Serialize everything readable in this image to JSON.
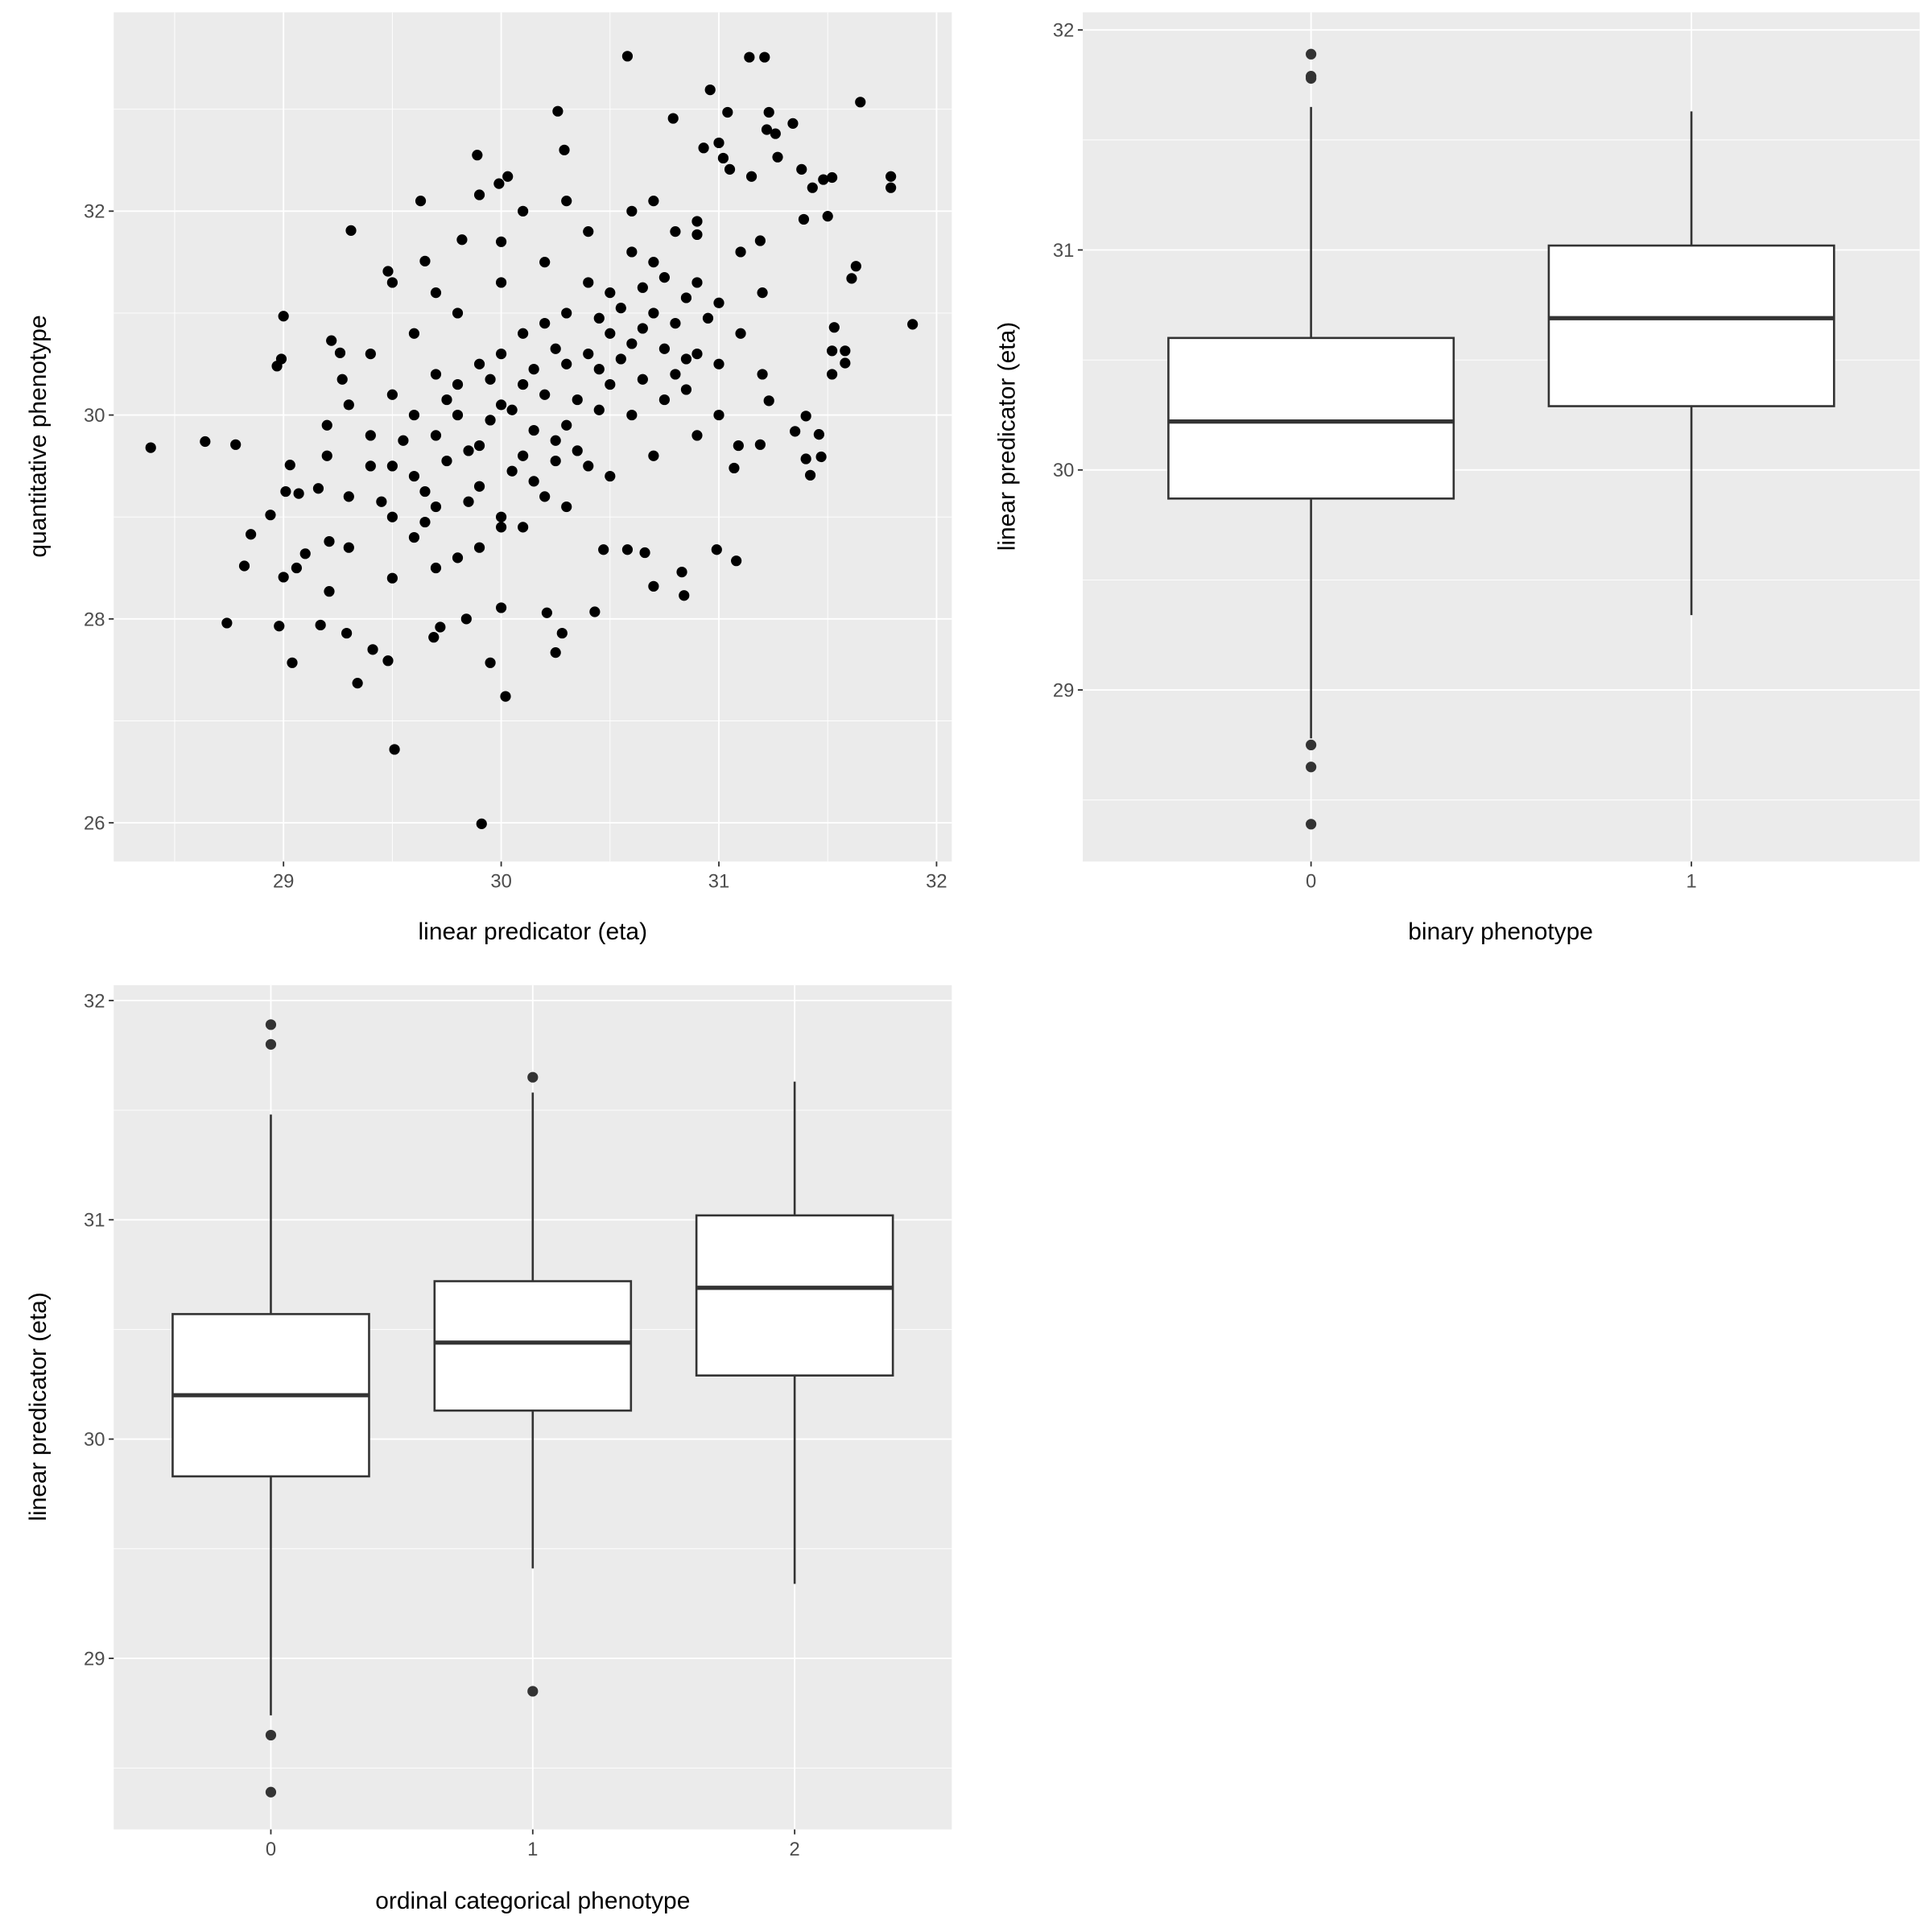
{
  "chart_data": [
    {
      "type": "scatter",
      "xlabel": "linear predicator (eta)",
      "ylabel": "quantitative phenotype",
      "xlim": [
        28.22,
        32.07
      ],
      "ylim": [
        25.62,
        33.95
      ],
      "xticks": [
        29,
        30,
        31,
        32
      ],
      "yticks": [
        26,
        28,
        30,
        32
      ],
      "grid": true,
      "point_color": "#000000",
      "points": [
        [
          28.39,
          29.68
        ],
        [
          28.64,
          29.74
        ],
        [
          28.78,
          29.71
        ],
        [
          28.74,
          27.96
        ],
        [
          28.82,
          28.52
        ],
        [
          28.85,
          28.83
        ],
        [
          28.94,
          29.02
        ],
        [
          28.97,
          30.48
        ],
        [
          28.99,
          30.55
        ],
        [
          29.0,
          30.97
        ],
        [
          28.98,
          27.93
        ],
        [
          29.04,
          27.57
        ],
        [
          29.0,
          28.41
        ],
        [
          29.06,
          28.5
        ],
        [
          29.1,
          28.64
        ],
        [
          29.03,
          29.51
        ],
        [
          29.07,
          29.23
        ],
        [
          29.01,
          29.25
        ],
        [
          29.16,
          29.28
        ],
        [
          29.17,
          27.94
        ],
        [
          29.21,
          28.76
        ],
        [
          29.21,
          28.27
        ],
        [
          29.22,
          30.73
        ],
        [
          29.26,
          30.61
        ],
        [
          29.27,
          30.35
        ],
        [
          29.29,
          27.86
        ],
        [
          29.31,
          31.81
        ],
        [
          29.34,
          27.37
        ],
        [
          29.41,
          27.7
        ],
        [
          29.48,
          27.59
        ],
        [
          29.51,
          26.72
        ],
        [
          29.91,
          25.99
        ],
        [
          30.02,
          27.24
        ],
        [
          29.95,
          27.57
        ],
        [
          29.69,
          27.82
        ],
        [
          30.26,
          32.98
        ],
        [
          30.29,
          32.6
        ],
        [
          30.58,
          33.52
        ],
        [
          31.14,
          33.51
        ],
        [
          31.21,
          33.51
        ],
        [
          30.96,
          33.19
        ],
        [
          31.65,
          33.07
        ],
        [
          30.79,
          32.91
        ],
        [
          31.04,
          32.97
        ],
        [
          31.23,
          32.97
        ],
        [
          31.34,
          32.86
        ],
        [
          31.22,
          32.8
        ],
        [
          31.26,
          32.76
        ],
        [
          31.27,
          32.53
        ],
        [
          30.93,
          32.62
        ],
        [
          31.0,
          32.67
        ],
        [
          31.02,
          32.52
        ],
        [
          31.05,
          32.41
        ],
        [
          31.38,
          32.41
        ],
        [
          31.79,
          32.34
        ],
        [
          31.79,
          32.23
        ],
        [
          31.52,
          32.33
        ],
        [
          31.48,
          32.31
        ],
        [
          31.43,
          32.23
        ],
        [
          31.15,
          32.34
        ],
        [
          31.89,
          30.89
        ],
        [
          31.63,
          31.46
        ],
        [
          31.61,
          31.34
        ],
        [
          31.5,
          31.95
        ],
        [
          31.39,
          31.92
        ],
        [
          31.53,
          30.86
        ],
        [
          31.52,
          30.63
        ],
        [
          31.58,
          30.63
        ],
        [
          31.58,
          30.51
        ],
        [
          31.52,
          30.4
        ],
        [
          31.4,
          29.99
        ],
        [
          31.35,
          29.84
        ],
        [
          31.46,
          29.81
        ],
        [
          31.47,
          29.59
        ],
        [
          31.4,
          29.57
        ],
        [
          31.42,
          29.41
        ],
        [
          31.23,
          30.14
        ],
        [
          31.19,
          29.71
        ],
        [
          31.09,
          29.7
        ],
        [
          31.07,
          29.48
        ],
        [
          31.08,
          28.57
        ],
        [
          30.99,
          28.68
        ],
        [
          30.84,
          28.23
        ],
        [
          30.83,
          28.46
        ],
        [
          30.7,
          28.32
        ],
        [
          30.66,
          28.65
        ],
        [
          30.58,
          28.68
        ],
        [
          30.47,
          28.68
        ],
        [
          30.43,
          28.07
        ],
        [
          30.28,
          27.86
        ],
        [
          30.25,
          27.67
        ],
        [
          30.21,
          28.06
        ],
        [
          30.0,
          28.11
        ],
        [
          29.84,
          28.0
        ],
        [
          29.72,
          27.92
        ],
        [
          29.82,
          31.72
        ],
        [
          29.89,
          32.55
        ],
        [
          29.9,
          32.16
        ],
        [
          29.99,
          32.27
        ],
        [
          30.03,
          32.34
        ],
        [
          29.63,
          32.1
        ],
        [
          29.65,
          31.51
        ],
        [
          29.48,
          31.41
        ],
        [
          30.9,
          31.77
        ],
        [
          31.19,
          31.71
        ],
        [
          29.5,
          29.0
        ],
        [
          29.6,
          29.4
        ],
        [
          29.7,
          29.8
        ],
        [
          29.8,
          30.0
        ],
        [
          29.9,
          29.7
        ],
        [
          30.0,
          30.1
        ],
        [
          30.1,
          30.3
        ],
        [
          30.2,
          30.2
        ],
        [
          30.3,
          30.5
        ],
        [
          30.4,
          30.6
        ],
        [
          30.5,
          30.8
        ],
        [
          30.6,
          30.7
        ],
        [
          30.7,
          31.0
        ],
        [
          30.8,
          30.9
        ],
        [
          30.9,
          30.6
        ],
        [
          31.0,
          31.1
        ],
        [
          30.5,
          30.3
        ],
        [
          30.3,
          29.9
        ],
        [
          30.1,
          29.6
        ],
        [
          29.9,
          29.3
        ],
        [
          29.7,
          29.1
        ],
        [
          29.6,
          28.8
        ],
        [
          29.8,
          28.6
        ],
        [
          30.0,
          28.9
        ],
        [
          30.2,
          29.2
        ],
        [
          30.4,
          29.5
        ],
        [
          30.6,
          30.0
        ],
        [
          30.8,
          30.4
        ],
        [
          31.0,
          30.5
        ],
        [
          30.9,
          31.3
        ],
        [
          30.7,
          31.5
        ],
        [
          30.5,
          31.2
        ],
        [
          30.3,
          31.0
        ],
        [
          30.1,
          30.8
        ],
        [
          29.9,
          30.5
        ],
        [
          29.7,
          30.4
        ],
        [
          29.5,
          30.2
        ],
        [
          29.4,
          29.8
        ],
        [
          29.5,
          29.5
        ],
        [
          29.6,
          30.0
        ],
        [
          29.8,
          30.3
        ],
        [
          30.0,
          30.6
        ],
        [
          30.2,
          30.9
        ],
        [
          30.4,
          31.3
        ],
        [
          30.6,
          31.6
        ],
        [
          30.8,
          31.8
        ],
        [
          30.6,
          32.0
        ],
        [
          30.4,
          31.8
        ],
        [
          30.2,
          31.5
        ],
        [
          30.0,
          31.3
        ],
        [
          29.8,
          31.0
        ],
        [
          29.6,
          30.8
        ],
        [
          29.4,
          30.6
        ],
        [
          29.5,
          31.3
        ],
        [
          29.7,
          31.2
        ],
        [
          30.0,
          31.7
        ],
        [
          30.1,
          32.0
        ],
        [
          30.3,
          32.1
        ],
        [
          30.7,
          32.1
        ],
        [
          30.9,
          31.9
        ],
        [
          31.1,
          31.6
        ],
        [
          31.2,
          31.2
        ],
        [
          31.1,
          30.8
        ],
        [
          31.2,
          30.4
        ],
        [
          31.0,
          30.0
        ],
        [
          30.9,
          29.8
        ],
        [
          30.7,
          29.6
        ],
        [
          30.5,
          29.4
        ],
        [
          30.3,
          29.1
        ],
        [
          30.1,
          28.9
        ],
        [
          29.9,
          28.7
        ],
        [
          29.7,
          28.5
        ],
        [
          29.5,
          28.4
        ],
        [
          29.3,
          28.7
        ],
        [
          29.3,
          29.2
        ],
        [
          29.4,
          29.5
        ],
        [
          29.2,
          29.6
        ],
        [
          29.3,
          30.1
        ],
        [
          29.2,
          29.9
        ],
        [
          30.0,
          29.0
        ],
        [
          30.15,
          29.35
        ],
        [
          30.25,
          29.75
        ],
        [
          30.35,
          30.15
        ],
        [
          30.45,
          30.45
        ],
        [
          30.55,
          30.55
        ],
        [
          30.65,
          30.85
        ],
        [
          30.75,
          30.65
        ],
        [
          30.85,
          30.55
        ],
        [
          30.95,
          30.95
        ],
        [
          30.05,
          30.05
        ],
        [
          29.95,
          29.95
        ],
        [
          29.85,
          29.65
        ],
        [
          29.75,
          29.55
        ],
        [
          29.65,
          29.25
        ],
        [
          30.15,
          30.45
        ],
        [
          30.25,
          30.65
        ],
        [
          30.45,
          30.95
        ],
        [
          30.55,
          31.05
        ],
        [
          30.65,
          31.25
        ],
        [
          30.75,
          31.35
        ],
        [
          30.85,
          31.15
        ],
        [
          30.35,
          29.65
        ],
        [
          30.45,
          30.05
        ],
        [
          30.65,
          30.35
        ],
        [
          30.75,
          30.15
        ],
        [
          30.85,
          30.25
        ],
        [
          29.55,
          29.75
        ],
        [
          29.45,
          29.15
        ],
        [
          29.65,
          28.95
        ],
        [
          29.85,
          29.15
        ],
        [
          30.05,
          29.45
        ],
        [
          30.25,
          29.55
        ],
        [
          30.15,
          29.85
        ],
        [
          29.95,
          30.35
        ],
        [
          29.75,
          30.15
        ]
      ]
    },
    {
      "type": "box",
      "xlabel": "binary phenotype",
      "ylabel": "linear predicator (eta)",
      "ylim": [
        28.22,
        32.08
      ],
      "yticks": [
        29,
        30,
        31,
        32
      ],
      "grid": true,
      "categories": [
        "0",
        "1"
      ],
      "boxes": [
        {
          "lower_whisker": 28.78,
          "q1": 29.87,
          "median": 30.22,
          "q3": 30.6,
          "upper_whisker": 31.65,
          "outliers": [
            31.89,
            31.79,
            31.78,
            28.75,
            28.65,
            28.39
          ]
        },
        {
          "lower_whisker": 29.34,
          "q1": 30.29,
          "median": 30.69,
          "q3": 31.02,
          "upper_whisker": 31.63,
          "outliers": []
        }
      ]
    },
    {
      "type": "box",
      "xlabel": "ordinal categorical phenotype",
      "ylabel": "linear predicator (eta)",
      "ylim": [
        28.22,
        32.07
      ],
      "yticks": [
        29,
        30,
        31,
        32
      ],
      "grid": true,
      "categories": [
        "0",
        "1",
        "2"
      ],
      "boxes": [
        {
          "lower_whisker": 28.74,
          "q1": 29.83,
          "median": 30.2,
          "q3": 30.57,
          "upper_whisker": 31.48,
          "outliers": [
            31.89,
            31.8,
            28.65,
            28.39
          ]
        },
        {
          "lower_whisker": 29.41,
          "q1": 30.13,
          "median": 30.44,
          "q3": 30.72,
          "upper_whisker": 31.58,
          "outliers": [
            31.65,
            28.85
          ]
        },
        {
          "lower_whisker": 29.34,
          "q1": 30.29,
          "median": 30.69,
          "q3": 31.02,
          "upper_whisker": 31.63,
          "outliers": []
        }
      ]
    }
  ],
  "colors": {
    "panel_background": "#EBEBEB",
    "grid": "#FFFFFF",
    "tick_label": "#4D4D4D",
    "box_line": "#333333"
  }
}
